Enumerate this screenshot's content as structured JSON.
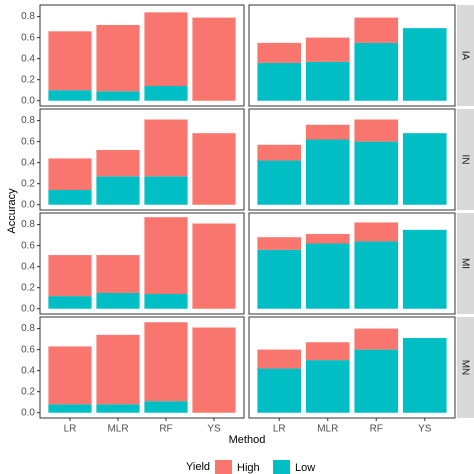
{
  "chart_data": {
    "type": "bar",
    "stacked": true,
    "ylabel": "Accuracy",
    "xlabel": "Method",
    "legend_title": "Yield",
    "categories": [
      "LR",
      "MLR",
      "RF",
      "YS"
    ],
    "series": [
      {
        "name": "High",
        "color": "#f8766d"
      },
      {
        "name": "Low",
        "color": "#00bfc4"
      }
    ],
    "rows": [
      "IA",
      "IN",
      "MI",
      "MN"
    ],
    "ylim": [
      -0.05,
      0.91
    ],
    "yticks": [
      {
        "value": 0,
        "label": "0.0"
      },
      0.2,
      0.4,
      0.6,
      0.8
    ],
    "grid": false,
    "panels": [
      {
        "values": [
          [
            0.56,
            0.63,
            0.7,
            0.79
          ],
          [
            0.1,
            0.09,
            0.14,
            0
          ]
        ]
      },
      {
        "values": [
          [
            0.19,
            0.23,
            0.24,
            0
          ],
          [
            0.36,
            0.37,
            0.55,
            0.69
          ]
        ]
      },
      {
        "values": [
          [
            0.3,
            0.25,
            0.54,
            0.68
          ],
          [
            0.14,
            0.27,
            0.27,
            0
          ]
        ]
      },
      {
        "values": [
          [
            0.15,
            0.14,
            0.21,
            0
          ],
          [
            0.42,
            0.62,
            0.6,
            0.68
          ]
        ]
      },
      {
        "values": [
          [
            0.39,
            0.36,
            0.73,
            0.81
          ],
          [
            0.12,
            0.15,
            0.14,
            0
          ]
        ]
      },
      {
        "values": [
          [
            0.12,
            0.09,
            0.18,
            0
          ],
          [
            0.56,
            0.62,
            0.64,
            0.75
          ]
        ]
      },
      {
        "values": [
          [
            0.55,
            0.66,
            0.75,
            0.81
          ],
          [
            0.08,
            0.08,
            0.11,
            0
          ]
        ]
      },
      {
        "values": [
          [
            0.18,
            0.17,
            0.2,
            0
          ],
          [
            0.42,
            0.5,
            0.6,
            0.71
          ]
        ]
      }
    ]
  }
}
